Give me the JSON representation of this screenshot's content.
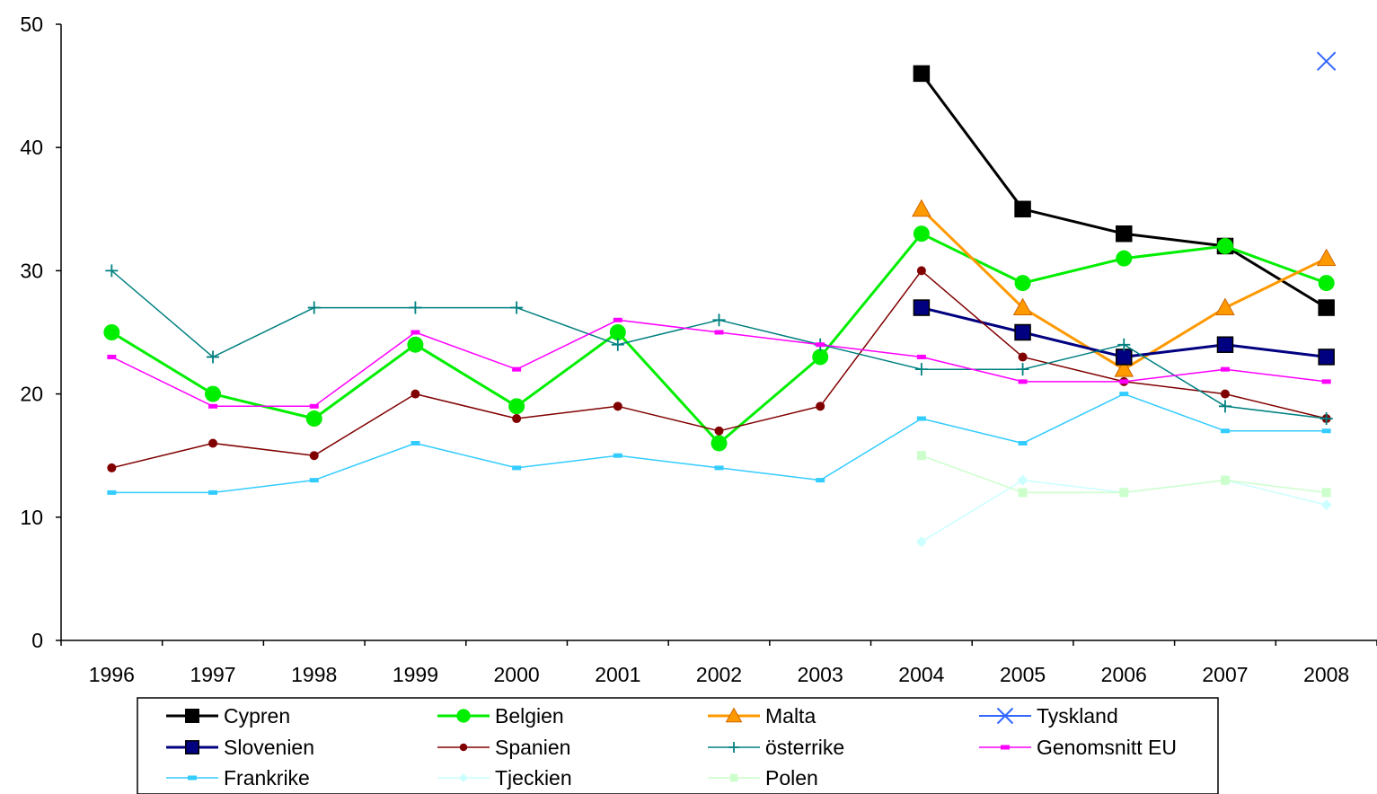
{
  "chart_data": {
    "type": "line",
    "title": "",
    "xlabel": "",
    "ylabel": "",
    "categories": [
      "1996",
      "1997",
      "1998",
      "1999",
      "2000",
      "2001",
      "2002",
      "2003",
      "2004",
      "2005",
      "2006",
      "2007",
      "2008"
    ],
    "ylim": [
      0,
      50
    ],
    "yticks": [
      0,
      10,
      20,
      30,
      40,
      50
    ],
    "grid": false,
    "legend_position": "bottom",
    "series": [
      {
        "name": "Cypren",
        "color": "#000000",
        "marker": "square-big",
        "width": 3,
        "values": [
          null,
          null,
          null,
          null,
          null,
          null,
          null,
          null,
          46,
          35,
          33,
          32,
          27
        ]
      },
      {
        "name": "Belgien",
        "color": "#00ee00",
        "marker": "circle-big",
        "width": 3,
        "values": [
          25,
          20,
          18,
          24,
          19,
          25,
          16,
          23,
          33,
          29,
          31,
          32,
          29
        ]
      },
      {
        "name": "Malta",
        "color": "#ff9900",
        "marker": "triangle",
        "width": 3,
        "values": [
          null,
          null,
          null,
          null,
          null,
          null,
          null,
          null,
          35,
          27,
          22,
          27,
          31
        ]
      },
      {
        "name": "Tyskland",
        "color": "#3366ff",
        "marker": "x",
        "width": 2,
        "values": [
          null,
          null,
          null,
          null,
          null,
          null,
          null,
          null,
          null,
          null,
          null,
          null,
          47
        ]
      },
      {
        "name": "Slovenien",
        "color": "#000080",
        "marker": "square-big",
        "width": 3,
        "values": [
          null,
          null,
          null,
          null,
          null,
          null,
          null,
          null,
          27,
          25,
          23,
          24,
          23
        ]
      },
      {
        "name": "Spanien",
        "color": "#800000",
        "marker": "circle-small",
        "width": 1.5,
        "values": [
          14,
          16,
          15,
          20,
          18,
          19,
          17,
          19,
          30,
          23,
          21,
          20,
          18
        ]
      },
      {
        "name": " österrike",
        "color": "#008080",
        "marker": "plus",
        "width": 1.5,
        "values": [
          30,
          23,
          27,
          27,
          27,
          24,
          26,
          24,
          22,
          22,
          24,
          19,
          18
        ]
      },
      {
        "name": "Genomsnitt EU",
        "color": "#ff00ff",
        "marker": "dash",
        "width": 1.5,
        "values": [
          23,
          19,
          19,
          25,
          22,
          26,
          25,
          24,
          23,
          21,
          21,
          22,
          21
        ]
      },
      {
        "name": "Frankrike",
        "color": "#33ccff",
        "marker": "dash",
        "width": 1.5,
        "values": [
          12,
          12,
          13,
          16,
          14,
          15,
          14,
          13,
          18,
          16,
          20,
          17,
          17
        ]
      },
      {
        "name": "Tjeckien",
        "color": "#ccffff",
        "marker": "diamond",
        "width": 1.5,
        "values": [
          null,
          null,
          null,
          null,
          null,
          null,
          null,
          null,
          8,
          13,
          12,
          13,
          11
        ]
      },
      {
        "name": "Polen",
        "color": "#ccffcc",
        "marker": "square-small",
        "width": 1.5,
        "values": [
          null,
          null,
          null,
          null,
          null,
          null,
          null,
          null,
          15,
          12,
          12,
          13,
          12
        ]
      }
    ]
  }
}
